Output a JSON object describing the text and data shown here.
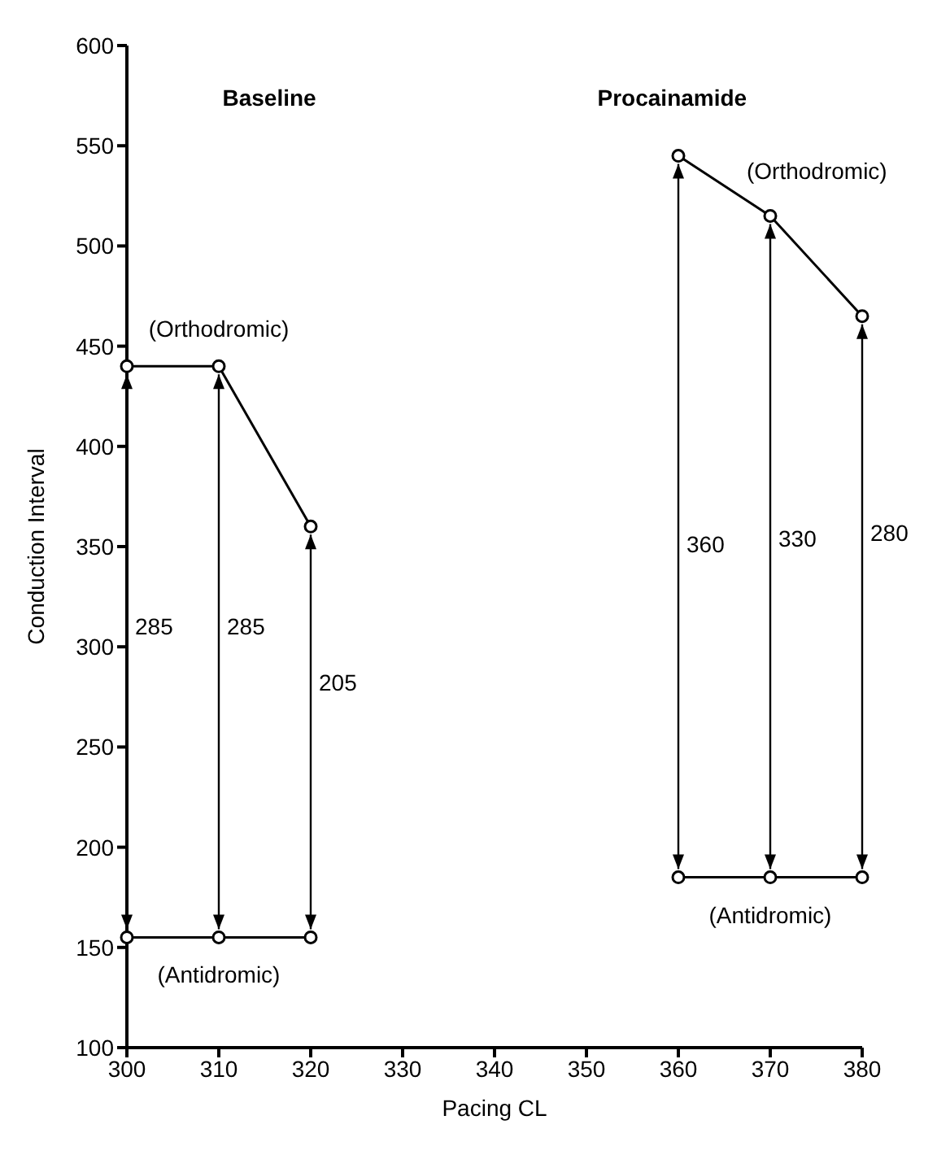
{
  "chart_data": {
    "type": "line",
    "xlabel": "Pacing CL",
    "ylabel": "Conduction Interval",
    "xlim": [
      300,
      380
    ],
    "xticks": [
      300,
      310,
      320,
      330,
      340,
      350,
      360,
      370,
      380
    ],
    "ylim": [
      100,
      600
    ],
    "yticks": [
      100,
      150,
      200,
      250,
      300,
      350,
      400,
      450,
      500,
      550,
      600
    ],
    "grid": false,
    "marker": "circle",
    "line_style": "solid",
    "series": [
      {
        "name": "(Orthodromic)",
        "color": "#000000",
        "x": [
          300,
          310,
          320
        ],
        "values": [
          440,
          440,
          360
        ]
      },
      {
        "name": "(Antidromic)",
        "color": "#000000",
        "x": [
          300,
          310,
          320
        ],
        "values": [
          155,
          155,
          155
        ]
      },
      {
        "name": "(Orthodromic)",
        "color": "#000000",
        "x": [
          360,
          370,
          380
        ],
        "values": [
          545,
          515,
          465
        ]
      },
      {
        "name": "(Antidromic)",
        "color": "#000000",
        "x": [
          360,
          370,
          380
        ],
        "values": [
          185,
          185,
          185
        ]
      }
    ],
    "annotations": [
      "Baseline",
      "Procainamide",
      "285",
      "285",
      "205",
      "360",
      "330",
      "280"
    ]
  }
}
